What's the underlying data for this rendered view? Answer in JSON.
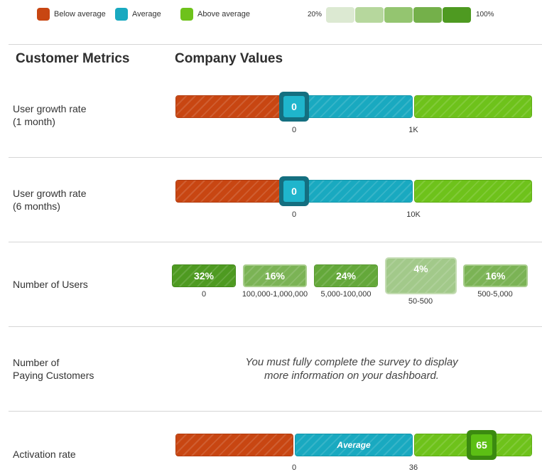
{
  "legend": {
    "items": [
      {
        "label": "Below average",
        "color": "#c84612"
      },
      {
        "label": "Average",
        "color": "#19a9c0"
      },
      {
        "label": "Above average",
        "color": "#6ec21b"
      }
    ],
    "scale_low": "20%",
    "scale_high": "100%",
    "scale_colors": [
      "#dce9d2",
      "#b6d79d",
      "#94c570",
      "#74b04a",
      "#4e9a21"
    ]
  },
  "headings": {
    "left": "Customer Metrics",
    "right": "Company Values"
  },
  "rows": {
    "growth_1m": {
      "label_line1": "User growth rate",
      "label_line2": "(1 month)",
      "marker_value": "0",
      "tick_a": "0",
      "tick_b": "1K"
    },
    "growth_6m": {
      "label_line1": "User growth rate",
      "label_line2": "(6 months)",
      "marker_value": "0",
      "tick_a": "0",
      "tick_b": "10K"
    },
    "users": {
      "label": "Number of Users",
      "tiles": [
        {
          "percent": "32%",
          "range": "0"
        },
        {
          "percent": "16%",
          "range": "100,000-1,000,000"
        },
        {
          "percent": "24%",
          "range": "5,000-100,000"
        },
        {
          "percent": "4%",
          "range": "50-500"
        },
        {
          "percent": "16%",
          "range": "500-5,000"
        }
      ]
    },
    "paying": {
      "label_line1": "Number of",
      "label_line2": "Paying Customers",
      "message_line1": "You must fully complete the survey to display",
      "message_line2": "more information on your dashboard."
    },
    "activation": {
      "label": "Activation rate",
      "middle_label": "Average",
      "marker_value": "65",
      "tick_a": "0",
      "tick_b": "36"
    }
  }
}
